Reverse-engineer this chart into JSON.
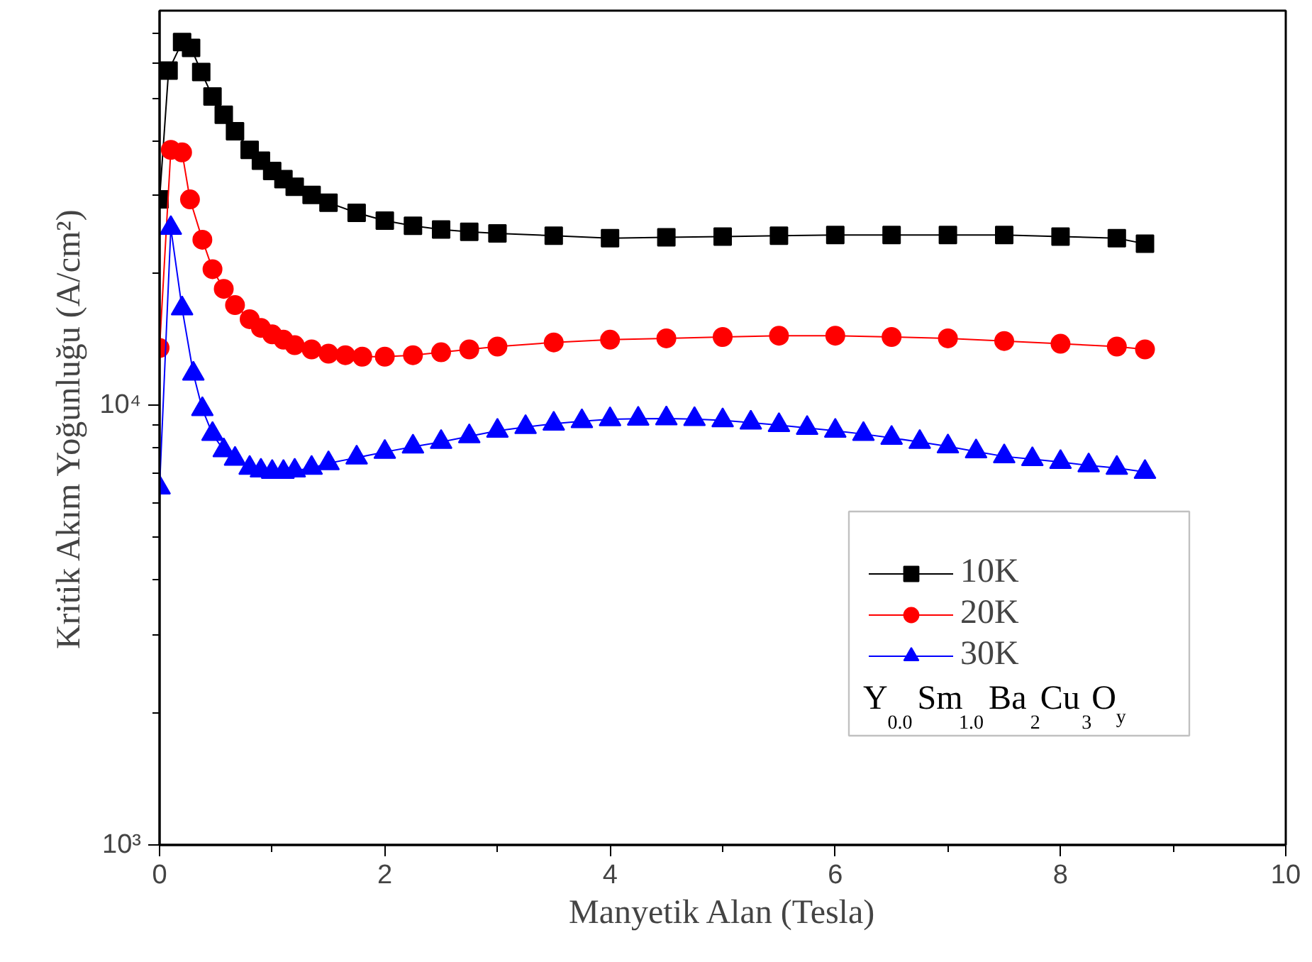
{
  "chart_data": {
    "type": "line",
    "xlabel": "Manyetik Alan (Tesla)",
    "ylabel": "Kritik Akım Yoğunluğu (A/cm²)",
    "log": "y",
    "xlim": [
      0,
      10
    ],
    "xticks": [
      0,
      2,
      4,
      6,
      8,
      10
    ],
    "ylim": [
      1000,
      79000
    ],
    "yticks": [
      {
        "value": 1000,
        "label": "10³"
      },
      {
        "value": 10000,
        "label": "10⁴"
      }
    ],
    "grid": false,
    "legend": "bottom right",
    "line_style": "solid",
    "annotations": [
      "Y$_{0.0}$Sm$_{1.0}$Ba$_{2}$Cu$_{3}$O$_{y}$"
    ],
    "series": [
      {
        "name": "10K",
        "color": "#000000",
        "marker": "square",
        "x": [
          0,
          0.08,
          0.2,
          0.28,
          0.37,
          0.47,
          0.57,
          0.67,
          0.8,
          0.9,
          1.0,
          1.1,
          1.2,
          1.35,
          1.5,
          1.75,
          2.0,
          2.25,
          2.5,
          2.75,
          3.0,
          3.5,
          4.0,
          4.5,
          5.0,
          5.5,
          6.0,
          6.5,
          7.0,
          7.5,
          8.0,
          8.5,
          8.75
        ],
        "values": [
          29400,
          57700,
          67000,
          65000,
          57300,
          50400,
          45800,
          42000,
          38100,
          36000,
          34100,
          32700,
          31400,
          30100,
          28900,
          27400,
          26300,
          25600,
          25100,
          24800,
          24600,
          24300,
          24000,
          24100,
          24200,
          24300,
          24400,
          24400,
          24400,
          24400,
          24200,
          24000,
          23300
        ]
      },
      {
        "name": "20K",
        "color": "#ff0000",
        "marker": "circle",
        "x": [
          0,
          0.1,
          0.2,
          0.27,
          0.38,
          0.47,
          0.57,
          0.67,
          0.8,
          0.9,
          1.0,
          1.1,
          1.2,
          1.35,
          1.5,
          1.65,
          1.8,
          2.0,
          2.25,
          2.5,
          2.75,
          3.0,
          3.5,
          4.0,
          4.5,
          5.0,
          5.5,
          6.0,
          6.5,
          7.0,
          7.5,
          8.0,
          8.5,
          8.75
        ],
        "values": [
          13500,
          38100,
          37600,
          29400,
          23800,
          20400,
          18400,
          16900,
          15700,
          15000,
          14500,
          14100,
          13700,
          13400,
          13100,
          13000,
          12900,
          12900,
          13000,
          13200,
          13400,
          13600,
          13900,
          14100,
          14200,
          14300,
          14400,
          14400,
          14300,
          14200,
          14000,
          13800,
          13600,
          13400
        ]
      },
      {
        "name": "30K",
        "color": "#0000ff",
        "marker": "triangle",
        "x": [
          0,
          0.1,
          0.2,
          0.3,
          0.38,
          0.47,
          0.57,
          0.67,
          0.8,
          0.9,
          1.0,
          1.1,
          1.2,
          1.35,
          1.5,
          1.75,
          2.0,
          2.25,
          2.5,
          2.75,
          3.0,
          3.25,
          3.5,
          3.75,
          4.0,
          4.25,
          4.5,
          4.75,
          5.0,
          5.25,
          5.5,
          5.75,
          6.0,
          6.25,
          6.5,
          6.75,
          7.0,
          7.25,
          7.5,
          7.75,
          8.0,
          8.25,
          8.5,
          8.75
        ],
        "values": [
          6500,
          25300,
          16600,
          11800,
          9800,
          8600,
          7900,
          7550,
          7200,
          7100,
          7050,
          7050,
          7100,
          7200,
          7380,
          7600,
          7830,
          8050,
          8250,
          8500,
          8750,
          8920,
          9080,
          9200,
          9290,
          9320,
          9330,
          9300,
          9240,
          9130,
          9010,
          8880,
          8750,
          8600,
          8430,
          8250,
          8060,
          7850,
          7650,
          7540,
          7430,
          7300,
          7200,
          7050
        ]
      }
    ]
  }
}
